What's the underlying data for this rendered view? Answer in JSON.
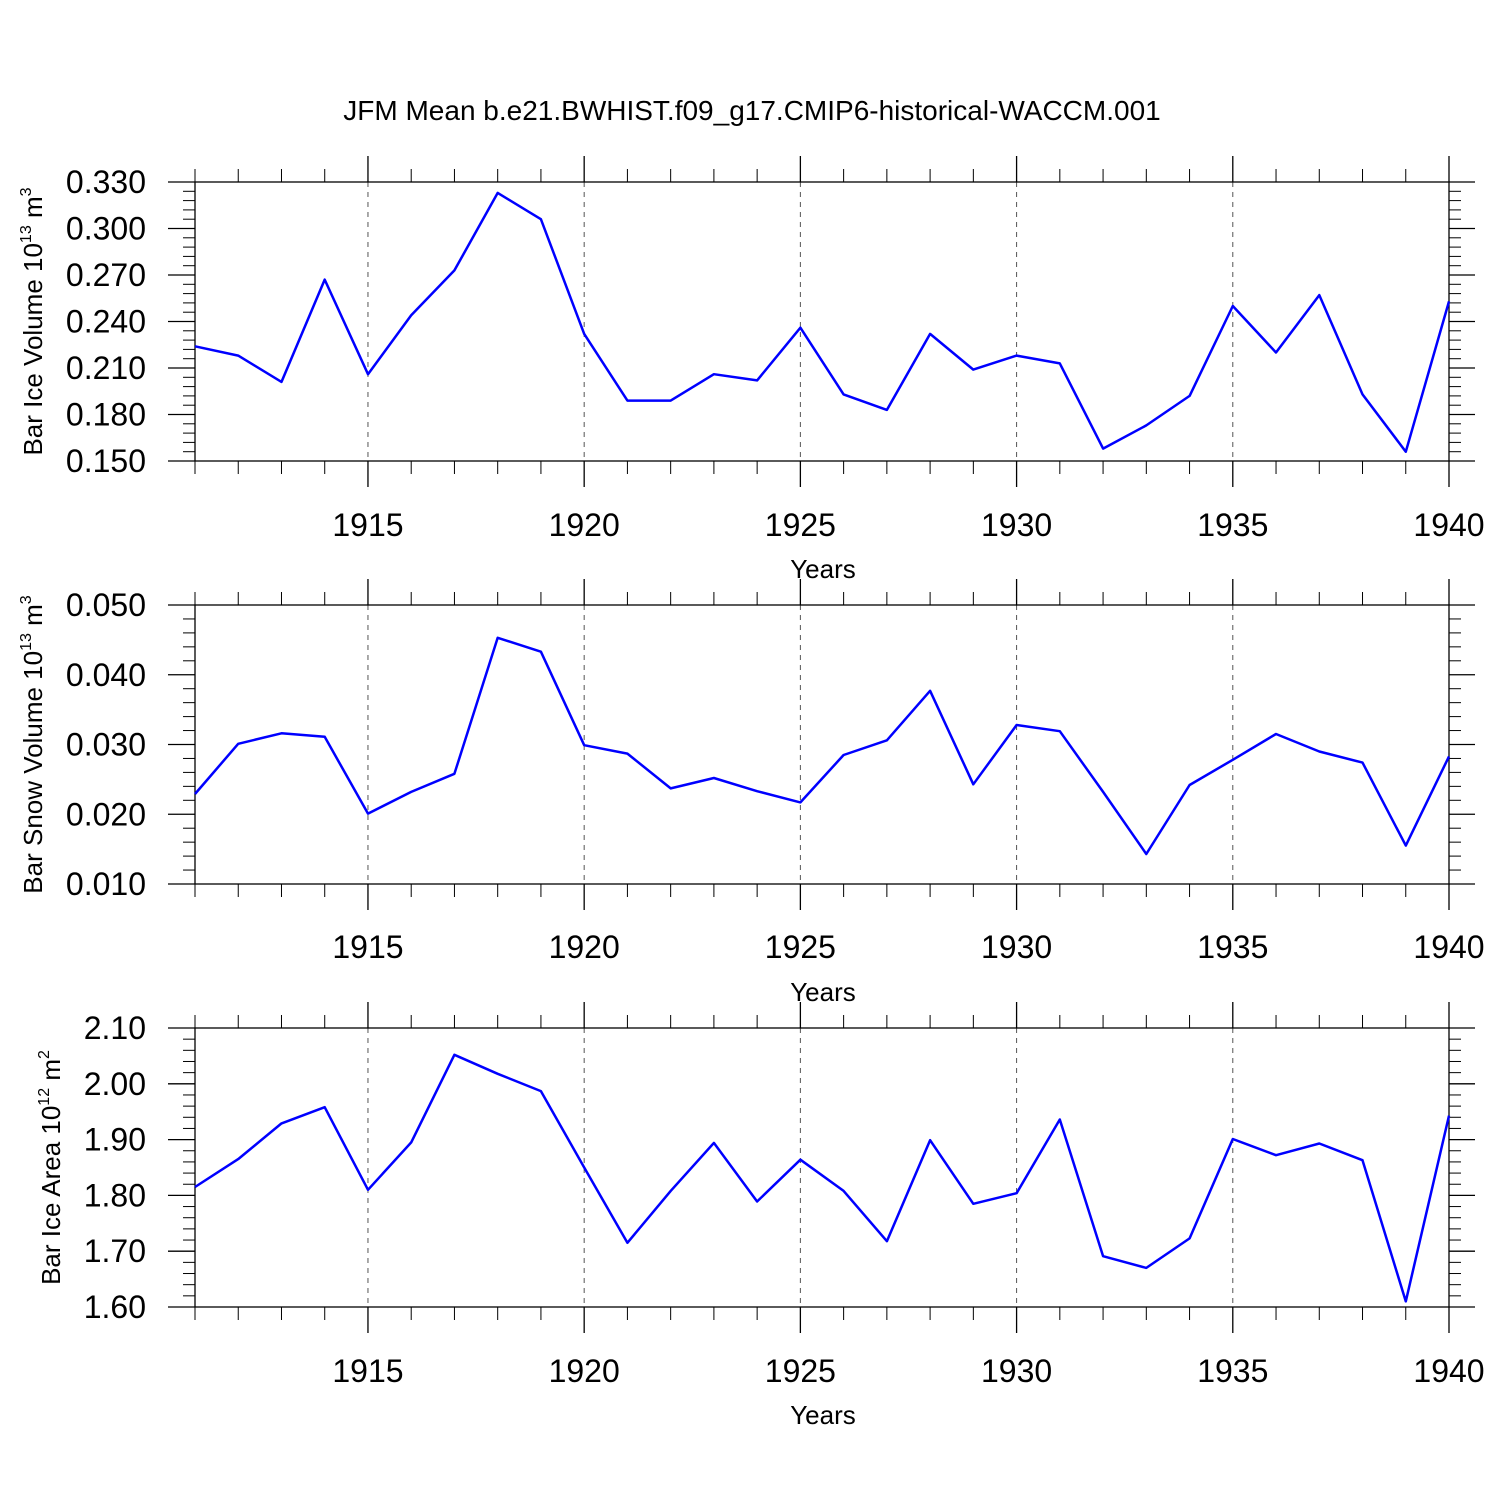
{
  "title": "JFM Mean b.e21.BWHIST.f09_g17.CMIP6-historical-WACCM.001",
  "colors": {
    "line": "#0000ff",
    "axis": "#000000",
    "grid": "#555555"
  },
  "chart_data": [
    {
      "type": "line",
      "ylabel": {
        "text": "Bar Ice Volume 10",
        "exp": "13",
        "unit": " m",
        "unit_exp": "3"
      },
      "xlabel": "Years",
      "xlim": [
        1911,
        1940
      ],
      "ylim": [
        0.15,
        0.33
      ],
      "yticks": [
        0.15,
        0.18,
        0.21,
        0.24,
        0.27,
        0.3,
        0.33
      ],
      "ytick_labels": [
        "0.150",
        "0.180",
        "0.210",
        "0.240",
        "0.270",
        "0.300",
        "0.330"
      ],
      "xticks": [
        1915,
        1920,
        1925,
        1930,
        1935,
        1940
      ],
      "xtick_labels": [
        "1915",
        "1920",
        "1925",
        "1930",
        "1935",
        "1940"
      ],
      "grid": "dashed vertical at major x ticks",
      "x": [
        1911,
        1912,
        1913,
        1914,
        1915,
        1916,
        1917,
        1918,
        1919,
        1920,
        1921,
        1922,
        1923,
        1924,
        1925,
        1926,
        1927,
        1928,
        1929,
        1930,
        1931,
        1932,
        1933,
        1934,
        1935,
        1936,
        1937,
        1938,
        1939,
        1940
      ],
      "values": [
        0.224,
        0.218,
        0.201,
        0.267,
        0.206,
        0.244,
        0.273,
        0.323,
        0.306,
        0.232,
        0.189,
        0.189,
        0.206,
        0.202,
        0.236,
        0.193,
        0.183,
        0.232,
        0.209,
        0.218,
        0.213,
        0.158,
        0.173,
        0.192,
        0.25,
        0.22,
        0.257,
        0.193,
        0.156,
        0.253
      ]
    },
    {
      "type": "line",
      "ylabel": {
        "text": "Bar Snow Volume 10",
        "exp": "13",
        "unit": " m",
        "unit_exp": "3"
      },
      "xlabel": "Years",
      "xlim": [
        1911,
        1940
      ],
      "ylim": [
        0.01,
        0.05
      ],
      "yticks": [
        0.01,
        0.02,
        0.03,
        0.04,
        0.05
      ],
      "ytick_labels": [
        "0.010",
        "0.020",
        "0.030",
        "0.040",
        "0.050"
      ],
      "xticks": [
        1915,
        1920,
        1925,
        1930,
        1935,
        1940
      ],
      "xtick_labels": [
        "1915",
        "1920",
        "1925",
        "1930",
        "1935",
        "1940"
      ],
      "grid": "dashed vertical at major x ticks",
      "x": [
        1911,
        1912,
        1913,
        1914,
        1915,
        1916,
        1917,
        1918,
        1919,
        1920,
        1921,
        1922,
        1923,
        1924,
        1925,
        1926,
        1927,
        1928,
        1929,
        1930,
        1931,
        1932,
        1933,
        1934,
        1935,
        1936,
        1937,
        1938,
        1939,
        1940
      ],
      "values": [
        0.0229,
        0.0301,
        0.0316,
        0.0311,
        0.0201,
        0.0232,
        0.0258,
        0.0453,
        0.0433,
        0.0299,
        0.0287,
        0.0237,
        0.0252,
        0.0233,
        0.0217,
        0.0285,
        0.0306,
        0.0377,
        0.0243,
        0.0328,
        0.0319,
        0.0232,
        0.0143,
        0.0242,
        0.0278,
        0.0315,
        0.029,
        0.0274,
        0.0155,
        0.0283
      ]
    },
    {
      "type": "line",
      "ylabel": {
        "text": "Bar Ice Area 10",
        "exp": "12",
        "unit": " m",
        "unit_exp": "2"
      },
      "xlabel": "Years",
      "xlim": [
        1911,
        1940
      ],
      "ylim": [
        1.6,
        2.1
      ],
      "yticks": [
        1.6,
        1.7,
        1.8,
        1.9,
        2.0,
        2.1
      ],
      "ytick_labels": [
        "1.60",
        "1.70",
        "1.80",
        "1.90",
        "2.00",
        "2.10"
      ],
      "xticks": [
        1915,
        1920,
        1925,
        1930,
        1935,
        1940
      ],
      "xtick_labels": [
        "1915",
        "1920",
        "1925",
        "1930",
        "1935",
        "1940"
      ],
      "grid": "dashed vertical at major x ticks",
      "x": [
        1911,
        1912,
        1913,
        1914,
        1915,
        1916,
        1917,
        1918,
        1919,
        1920,
        1921,
        1922,
        1923,
        1924,
        1925,
        1926,
        1927,
        1928,
        1929,
        1930,
        1931,
        1932,
        1933,
        1934,
        1935,
        1936,
        1937,
        1938,
        1939,
        1940
      ],
      "values": [
        1.815,
        1.865,
        1.929,
        1.958,
        1.81,
        1.895,
        2.052,
        2.018,
        1.987,
        1.85,
        1.715,
        1.808,
        1.894,
        1.789,
        1.864,
        1.808,
        1.718,
        1.899,
        1.785,
        1.804,
        1.936,
        1.691,
        1.67,
        1.723,
        1.901,
        1.872,
        1.893,
        1.863,
        1.61,
        1.943
      ]
    }
  ]
}
